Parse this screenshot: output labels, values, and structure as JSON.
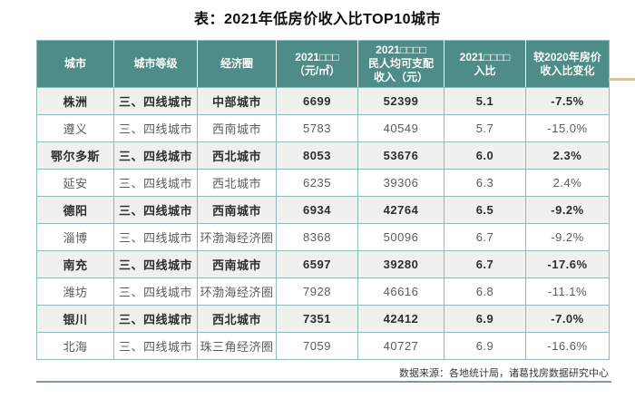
{
  "title": "表：2021年低房价收入比TOP10城市",
  "chart_data": {
    "type": "table",
    "title": "表：2021年低房价收入比TOP10城市",
    "columns": [
      {
        "key": "city",
        "label_lines": [
          "城市"
        ]
      },
      {
        "key": "tier",
        "label_lines": [
          "城市等级"
        ]
      },
      {
        "key": "circle",
        "label_lines": [
          "经济圈"
        ]
      },
      {
        "key": "price",
        "label_lines": [
          "2021□□□",
          "（元/㎡）"
        ]
      },
      {
        "key": "income",
        "label_lines": [
          "2021□□□□",
          "民人均可支配",
          "收入（元）"
        ]
      },
      {
        "key": "ratio",
        "label_lines": [
          "2021□□□□",
          "入比"
        ]
      },
      {
        "key": "change",
        "label_lines": [
          "较2020年房价",
          "收入比变化"
        ]
      }
    ],
    "rows": [
      {
        "city": "株洲",
        "tier": "三、四线城市",
        "circle": "中部城市",
        "price": "6699",
        "income": "52399",
        "ratio": "5.1",
        "change": "-7.5%"
      },
      {
        "city": "遵义",
        "tier": "三、四线城市",
        "circle": "西南城市",
        "price": "5783",
        "income": "40549",
        "ratio": "5.7",
        "change": "-15.0%"
      },
      {
        "city": "鄂尔多斯",
        "tier": "三、四线城市",
        "circle": "西北城市",
        "price": "8053",
        "income": "53676",
        "ratio": "6.0",
        "change": "2.3%"
      },
      {
        "city": "延安",
        "tier": "三、四线城市",
        "circle": "西北城市",
        "price": "6235",
        "income": "39306",
        "ratio": "6.3",
        "change": "2.4%"
      },
      {
        "city": "德阳",
        "tier": "三、四线城市",
        "circle": "西南城市",
        "price": "6934",
        "income": "42764",
        "ratio": "6.5",
        "change": "-9.2%"
      },
      {
        "city": "淄博",
        "tier": "三、四线城市",
        "circle": "环渤海经济圈",
        "price": "8368",
        "income": "50096",
        "ratio": "6.7",
        "change": "-9.2%"
      },
      {
        "city": "南充",
        "tier": "三、四线城市",
        "circle": "西南城市",
        "price": "6597",
        "income": "39280",
        "ratio": "6.7",
        "change": "-17.6%"
      },
      {
        "city": "潍坊",
        "tier": "三、四线城市",
        "circle": "环渤海经济圈",
        "price": "7928",
        "income": "46616",
        "ratio": "6.8",
        "change": "-11.1%"
      },
      {
        "city": "银川",
        "tier": "三、四线城市",
        "circle": "西北城市",
        "price": "7351",
        "income": "42412",
        "ratio": "6.9",
        "change": "-7.0%"
      },
      {
        "city": "北海",
        "tier": "三、四线城市",
        "circle": "珠三角经济圈",
        "price": "7059",
        "income": "40727",
        "ratio": "6.9",
        "change": "-16.6%"
      }
    ],
    "source": "数据来源：各地统计局，诸葛找房数据研究中心"
  },
  "colors": {
    "header_bg": "#4e8c87",
    "grid": "#8cbab6",
    "alt_row_bg": "#f0f0ee",
    "accent_tan_line": "#d9c4a0",
    "bottom_divider": "#7e98a5"
  }
}
